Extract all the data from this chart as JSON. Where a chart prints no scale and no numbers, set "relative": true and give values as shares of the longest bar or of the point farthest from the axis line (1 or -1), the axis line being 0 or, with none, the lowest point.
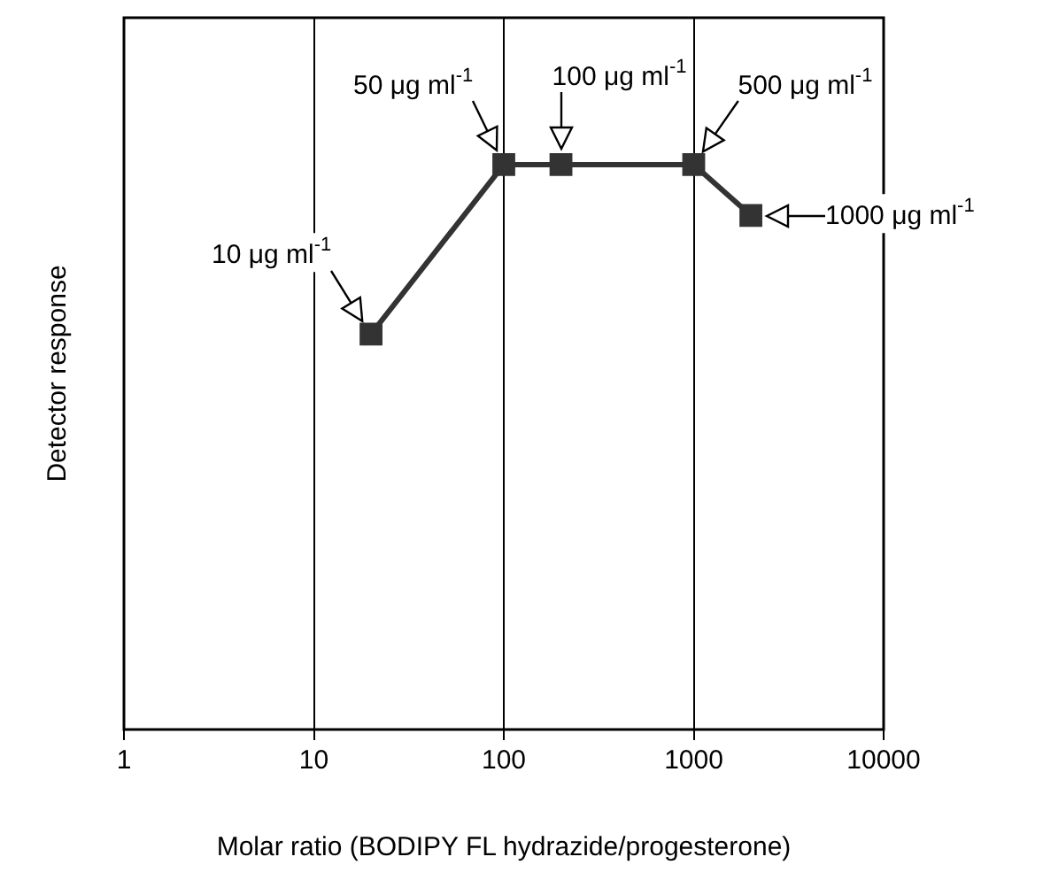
{
  "chart_data": {
    "type": "line",
    "xlabel": "Molar ratio (BODIPY FL hydrazide/progesterone)",
    "ylabel": "Detector response",
    "log": "x",
    "xlim": [
      1,
      10000
    ],
    "xticks": [
      1,
      10,
      100,
      1000,
      10000
    ],
    "relative": true,
    "grid": "x",
    "legend": false,
    "marker": "square",
    "line_style": "solid",
    "series": [
      {
        "color": "#333333",
        "x": [
          20,
          100,
          200,
          1000,
          2000
        ],
        "values": [
          0.7,
          1.0,
          1.0,
          1.0,
          0.91
        ]
      }
    ],
    "annotations": [
      {
        "text": "10 μg ml$^{-1}$",
        "x": 20,
        "y": 0.7
      },
      {
        "text": "50 μg ml$^{-1}$",
        "x": 100,
        "y": 1.0
      },
      {
        "text": "100 μg ml$^{-1}$",
        "x": 200,
        "y": 1.0
      },
      {
        "text": "500 μg ml$^{-1}$",
        "x": 1000,
        "y": 1.0
      },
      {
        "text": "1000 μg ml$^{-1}$",
        "x": 2000,
        "y": 0.91
      }
    ]
  }
}
